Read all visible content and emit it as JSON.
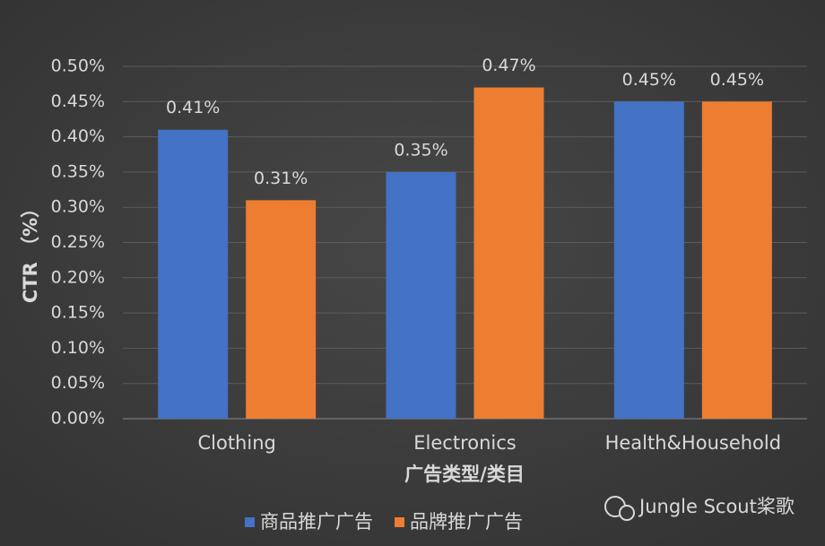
{
  "chart_data": {
    "type": "bar",
    "y_label": "CTR （%）",
    "x_label": "广告类型/类目",
    "categories": [
      "Clothing",
      "Electronics",
      "Health&Household"
    ],
    "series": [
      {
        "name": "商品推广广告",
        "color": "#4472c4",
        "values": [
          0.41,
          0.35,
          0.45
        ],
        "value_labels": [
          "0.41%",
          "0.35%",
          "0.45%"
        ]
      },
      {
        "name": "品牌推广广告",
        "color": "#ed7d31",
        "values": [
          0.31,
          0.47,
          0.45
        ],
        "value_labels": [
          "0.31%",
          "0.47%",
          "0.45%"
        ]
      }
    ],
    "ylim": [
      0,
      0.5
    ],
    "yticks": [
      {
        "value": 0,
        "label": "0.00%"
      },
      {
        "value": 0.05,
        "label": "0.05%"
      },
      {
        "value": 0.1,
        "label": "0.10%"
      },
      {
        "value": 0.15,
        "label": "0.15%"
      },
      {
        "value": 0.2,
        "label": "0.20%"
      },
      {
        "value": 0.25,
        "label": "0.25%"
      },
      {
        "value": 0.3,
        "label": "0.30%"
      },
      {
        "value": 0.35,
        "label": "0.35%"
      },
      {
        "value": 0.4,
        "label": "0.40%"
      },
      {
        "value": 0.45,
        "label": "0.45%"
      },
      {
        "value": 0.5,
        "label": "0.50%"
      }
    ],
    "grid": true,
    "legend": "bottom",
    "watermark": "Jungle Scout桨歌"
  }
}
